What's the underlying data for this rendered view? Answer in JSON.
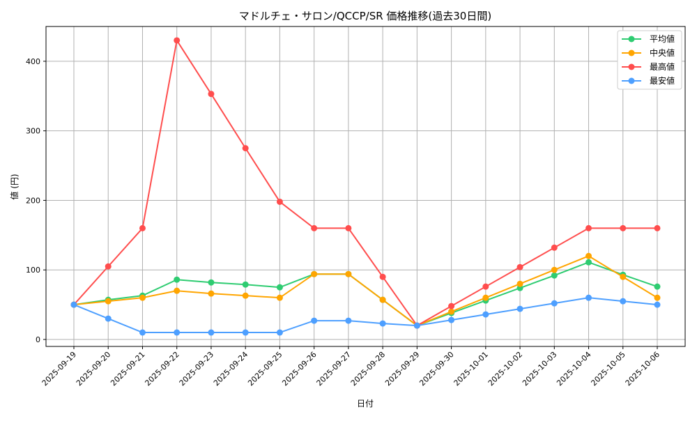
{
  "chart_data": {
    "type": "line",
    "title": "マドルチェ・サロン/QCCP/SR 価格推移(過去30日間)",
    "xlabel": "日付",
    "ylabel": "値 (円)",
    "ylim": [
      -10,
      450
    ],
    "yticks": [
      0,
      100,
      200,
      300,
      400
    ],
    "grid": true,
    "legend_position": "top-right",
    "categories": [
      "2025-09-19",
      "2025-09-20",
      "2025-09-21",
      "2025-09-22",
      "2025-09-23",
      "2025-09-24",
      "2025-09-25",
      "2025-09-26",
      "2025-09-27",
      "2025-09-28",
      "2025-09-29",
      "2025-09-30",
      "2025-10-01",
      "2025-10-02",
      "2025-10-03",
      "2025-10-04",
      "2025-10-05",
      "2025-10-06"
    ],
    "series": [
      {
        "name": "平均値",
        "color": "#2ecc71",
        "values": [
          50,
          57,
          63,
          86,
          82,
          79,
          75,
          94,
          94,
          57,
          20,
          38,
          56,
          74,
          92,
          111,
          93,
          76
        ]
      },
      {
        "name": "中央値",
        "color": "#ffa500",
        "values": [
          50,
          55,
          60,
          70,
          66,
          63,
          60,
          94,
          94,
          57,
          20,
          40,
          60,
          80,
          100,
          120,
          90,
          60
        ]
      },
      {
        "name": "最高値",
        "color": "#ff4d4d",
        "values": [
          50,
          105,
          160,
          430,
          353,
          275,
          198,
          160,
          160,
          90,
          20,
          48,
          76,
          104,
          132,
          160,
          160,
          160
        ]
      },
      {
        "name": "最安値",
        "color": "#4d9fff",
        "values": [
          50,
          30,
          10,
          10,
          10,
          10,
          10,
          27,
          27,
          23,
          20,
          28,
          36,
          44,
          52,
          60,
          55,
          50
        ]
      }
    ]
  }
}
